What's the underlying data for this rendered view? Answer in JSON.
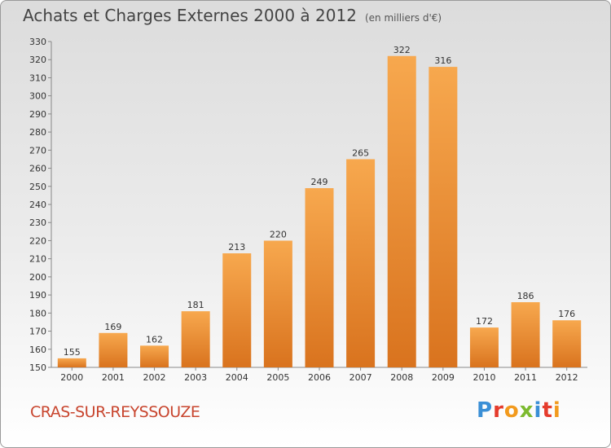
{
  "header": {
    "title": "Achats et Charges Externes 2000 à 2012",
    "unit": "(en milliers d'€)"
  },
  "footer": {
    "commune": "CRAS-SUR-REYSSOUZE",
    "logo_letters": [
      "P",
      "r",
      "o",
      "x",
      "i",
      "t",
      "i"
    ],
    "logo_colors": [
      "#3a8fd6",
      "#e53b2c",
      "#f29a1d",
      "#7cba2f",
      "#3a8fd6",
      "#e53b2c",
      "#f29a1d"
    ]
  },
  "chart_data": {
    "type": "bar",
    "title": "Achats et Charges Externes 2000 à 2012",
    "categories": [
      "2000",
      "2001",
      "2002",
      "2003",
      "2004",
      "2005",
      "2006",
      "2007",
      "2008",
      "2009",
      "2010",
      "2011",
      "2012"
    ],
    "values": [
      155,
      169,
      162,
      181,
      213,
      220,
      249,
      265,
      322,
      316,
      172,
      186,
      176
    ],
    "ylim": [
      150,
      330
    ],
    "yticks": [
      150,
      160,
      170,
      180,
      190,
      200,
      210,
      220,
      230,
      240,
      250,
      260,
      270,
      280,
      290,
      300,
      310,
      320,
      330
    ],
    "grid": false,
    "bar_color_light": "#f7a84e",
    "bar_color_dark": "#d9731e"
  }
}
